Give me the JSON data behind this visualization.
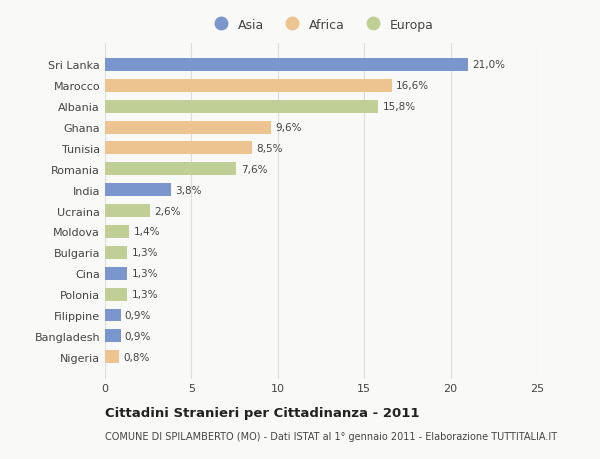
{
  "countries": [
    "Sri Lanka",
    "Marocco",
    "Albania",
    "Ghana",
    "Tunisia",
    "Romania",
    "India",
    "Ucraina",
    "Moldova",
    "Bulgaria",
    "Cina",
    "Polonia",
    "Filippine",
    "Bangladesh",
    "Nigeria"
  ],
  "values": [
    21.0,
    16.6,
    15.8,
    9.6,
    8.5,
    7.6,
    3.8,
    2.6,
    1.4,
    1.3,
    1.3,
    1.3,
    0.9,
    0.9,
    0.8
  ],
  "labels": [
    "21,0%",
    "16,6%",
    "15,8%",
    "9,6%",
    "8,5%",
    "7,6%",
    "3,8%",
    "2,6%",
    "1,4%",
    "1,3%",
    "1,3%",
    "1,3%",
    "0,9%",
    "0,9%",
    "0,8%"
  ],
  "continents": [
    "Asia",
    "Africa",
    "Europa",
    "Africa",
    "Africa",
    "Europa",
    "Asia",
    "Europa",
    "Europa",
    "Europa",
    "Asia",
    "Europa",
    "Asia",
    "Asia",
    "Africa"
  ],
  "colors": {
    "Asia": "#7b96cc",
    "Africa": "#edc490",
    "Europa": "#bfcf96"
  },
  "xlim": [
    0,
    25
  ],
  "xticks": [
    0,
    5,
    10,
    15,
    20,
    25
  ],
  "title": "Cittadini Stranieri per Cittadinanza - 2011",
  "subtitle": "COMUNE DI SPILAMBERTO (MO) - Dati ISTAT al 1° gennaio 2011 - Elaborazione TUTTITALIA.IT",
  "bg_color": "#f9f9f7",
  "grid_color": "#dddddd",
  "text_color": "#444444"
}
